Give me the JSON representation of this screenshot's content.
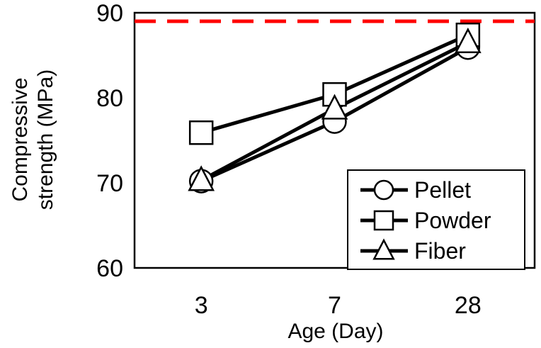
{
  "chart_data": {
    "type": "line",
    "categories": [
      "3",
      "7",
      "28"
    ],
    "series": [
      {
        "name": "Pellet",
        "marker": "circle",
        "values": [
          70.2,
          77.2,
          85.9
        ]
      },
      {
        "name": "Powder",
        "marker": "square",
        "values": [
          75.9,
          80.4,
          87.4
        ]
      },
      {
        "name": "Fiber",
        "marker": "triangle",
        "values": [
          70.3,
          78.7,
          86.5
        ]
      }
    ],
    "reference_line": {
      "y": 89,
      "color": "#ff0000",
      "style": "dashed"
    },
    "xlabel": "Age (Day)",
    "ylabel": [
      "Compressive",
      "strength (MPa)"
    ],
    "ylim": [
      60,
      90
    ],
    "yticks": [
      60,
      70,
      80,
      90
    ],
    "grid": false,
    "legend_position": "bottom-right",
    "line_color": "#000000",
    "marker_fill": "#ffffff"
  }
}
